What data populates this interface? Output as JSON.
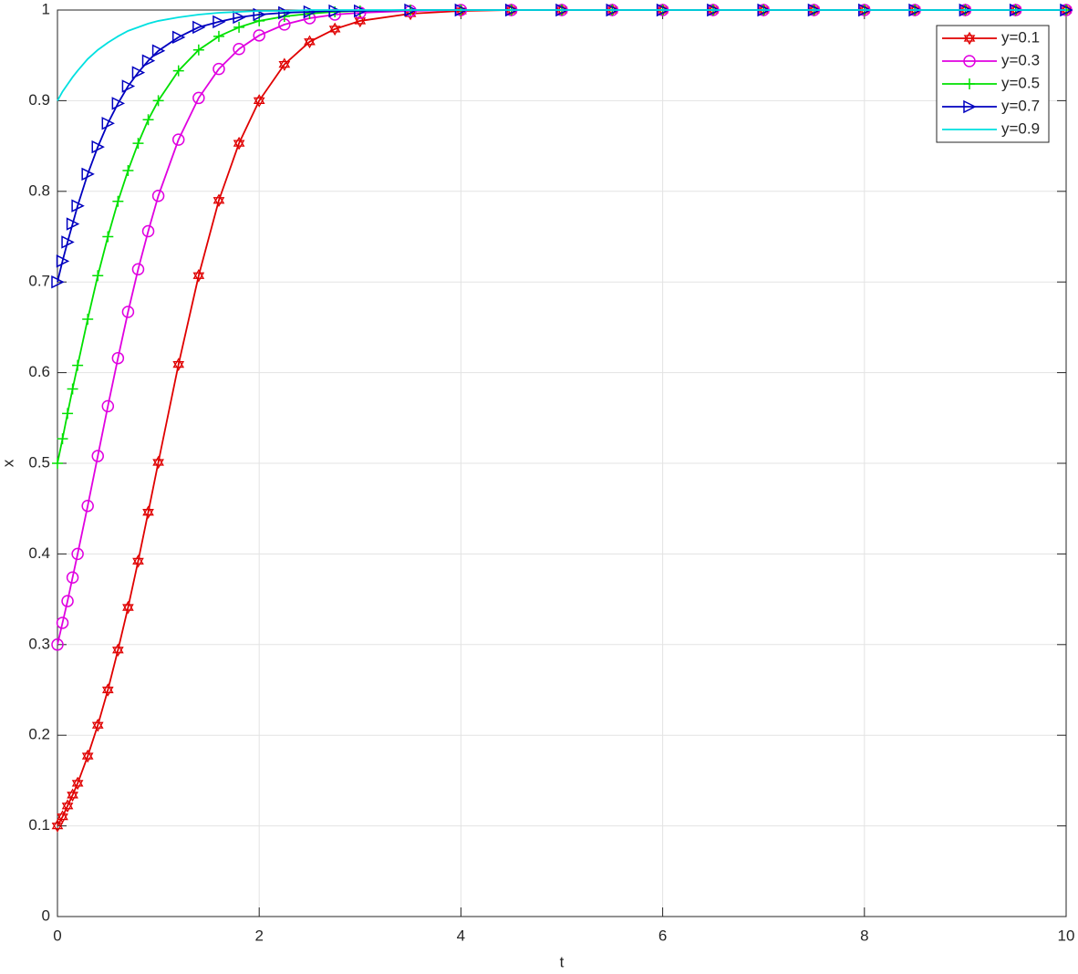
{
  "chart_data": {
    "type": "line",
    "xlabel": "t",
    "ylabel": "x",
    "xlim": [
      0,
      10
    ],
    "ylim": [
      0,
      1
    ],
    "xticks": [
      0,
      2,
      4,
      6,
      8,
      10
    ],
    "yticks": [
      0,
      0.1,
      0.2,
      0.3,
      0.4,
      0.5,
      0.6,
      0.7,
      0.8,
      0.9,
      1
    ],
    "grid": true,
    "legend": "upper right",
    "x": [
      0,
      0.05,
      0.1,
      0.15,
      0.2,
      0.3,
      0.4,
      0.5,
      0.6,
      0.7,
      0.8,
      0.9,
      1,
      1.2,
      1.4,
      1.6,
      1.8,
      2,
      2.25,
      2.5,
      2.75,
      3,
      3.5,
      4,
      4.5,
      5,
      5.5,
      6,
      6.5,
      7,
      7.5,
      8,
      8.5,
      9,
      9.5,
      10
    ],
    "series": [
      {
        "name": "y=0.1",
        "color": "#e00000",
        "marker": "hexagram",
        "values": [
          0.1,
          0.11,
          0.122,
          0.134,
          0.147,
          0.177,
          0.211,
          0.25,
          0.294,
          0.341,
          0.392,
          0.446,
          0.501,
          0.609,
          0.707,
          0.79,
          0.853,
          0.9,
          0.94,
          0.965,
          0.979,
          0.988,
          0.996,
          0.999,
          1,
          1,
          1,
          1,
          1,
          1,
          1,
          1,
          1,
          1,
          1,
          1
        ]
      },
      {
        "name": "y=0.3",
        "color": "#e000e0",
        "marker": "circle",
        "values": [
          0.3,
          0.324,
          0.348,
          0.374,
          0.4,
          0.453,
          0.508,
          0.563,
          0.616,
          0.667,
          0.714,
          0.756,
          0.795,
          0.857,
          0.903,
          0.935,
          0.957,
          0.972,
          0.984,
          0.991,
          0.995,
          0.997,
          0.999,
          1,
          1,
          1,
          1,
          1,
          1,
          1,
          1,
          1,
          1,
          1,
          1,
          1
        ]
      },
      {
        "name": "y=0.5",
        "color": "#00e000",
        "marker": "plus",
        "values": [
          0.5,
          0.527,
          0.555,
          0.582,
          0.608,
          0.659,
          0.707,
          0.75,
          0.789,
          0.823,
          0.853,
          0.879,
          0.9,
          0.933,
          0.956,
          0.971,
          0.981,
          0.988,
          0.993,
          0.996,
          0.998,
          0.999,
          1,
          1,
          1,
          1,
          1,
          1,
          1,
          1,
          1,
          1,
          1,
          1,
          1,
          1
        ]
      },
      {
        "name": "y=0.7",
        "color": "#0000c0",
        "marker": "triangle-right",
        "values": [
          0.7,
          0.723,
          0.744,
          0.764,
          0.784,
          0.819,
          0.849,
          0.875,
          0.897,
          0.916,
          0.931,
          0.944,
          0.955,
          0.97,
          0.981,
          0.987,
          0.992,
          0.995,
          0.997,
          0.998,
          0.999,
          0.999,
          1,
          1,
          1,
          1,
          1,
          1,
          1,
          1,
          1,
          1,
          1,
          1,
          1,
          1
        ]
      },
      {
        "name": "y=0.9",
        "color": "#00e0e0",
        "marker": "none",
        "values": [
          0.9,
          0.91,
          0.918,
          0.926,
          0.933,
          0.946,
          0.956,
          0.964,
          0.971,
          0.977,
          0.981,
          0.985,
          0.988,
          0.992,
          0.995,
          0.997,
          0.998,
          0.999,
          0.999,
          1,
          1,
          1,
          1,
          1,
          1,
          1,
          1,
          1,
          1,
          1,
          1,
          1,
          1,
          1,
          1,
          1
        ]
      }
    ]
  }
}
